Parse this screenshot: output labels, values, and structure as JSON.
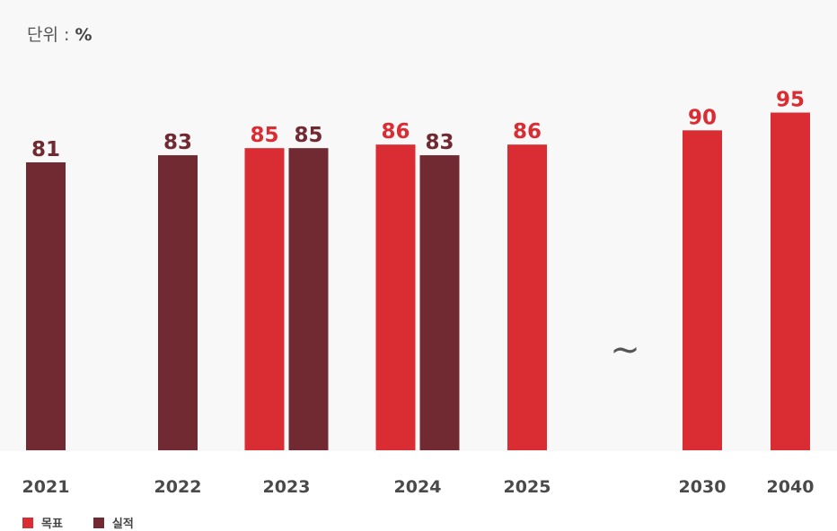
{
  "unit": {
    "prefix": "단위 : ",
    "value": "%"
  },
  "break_symbol": "~",
  "colors": {
    "target": "#d92d33",
    "actual": "#722a32"
  },
  "chart_data": {
    "type": "bar",
    "categories": [
      "2021",
      "2022",
      "2023",
      "2024",
      "2025",
      "2030",
      "2040"
    ],
    "series": [
      {
        "name": "목표",
        "values": [
          null,
          null,
          85,
          86,
          86,
          90,
          95
        ]
      },
      {
        "name": "실적",
        "values": [
          81,
          83,
          85,
          83,
          null,
          null,
          null
        ]
      }
    ],
    "ylim": [
      0,
      100
    ],
    "grid": false,
    "legend": "bottom-left",
    "xlabel": "",
    "ylabel": ""
  }
}
